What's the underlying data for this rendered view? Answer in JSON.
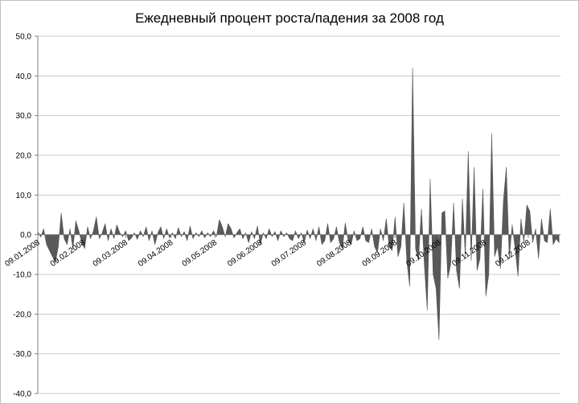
{
  "chart_data": {
    "type": "area",
    "title": "Ежедневный процент роста/падения за 2008 год",
    "xlabel": "",
    "ylabel": "",
    "ylim": [
      -40,
      50
    ],
    "yticks": [
      50,
      40,
      30,
      20,
      10,
      0,
      -10,
      -20,
      -30,
      -40
    ],
    "ytick_labels": [
      "50,0",
      "40,0",
      "30,0",
      "20,0",
      "10,0",
      "0,0",
      "-10,0",
      "-20,0",
      "-30,0",
      "-40,0"
    ],
    "grid": true,
    "legend": "none",
    "fill_color": "#595959",
    "x_date_range": [
      "2008-01-09",
      "2008-12-31"
    ],
    "x_ticks": [
      {
        "date": "2008-01-09",
        "label": "09.01.2008"
      },
      {
        "date": "2008-02-09",
        "label": "09.02.2008"
      },
      {
        "date": "2008-03-09",
        "label": "09.03.2008"
      },
      {
        "date": "2008-04-09",
        "label": "09.04.2008"
      },
      {
        "date": "2008-05-09",
        "label": "09.05.2008"
      },
      {
        "date": "2008-06-09",
        "label": "09.06.2008"
      },
      {
        "date": "2008-07-09",
        "label": "09.07.2008"
      },
      {
        "date": "2008-08-09",
        "label": "09.08.2008"
      },
      {
        "date": "2008-09-09",
        "label": "09.09.2008"
      },
      {
        "date": "2008-10-09",
        "label": "09.10.2008"
      },
      {
        "date": "2008-11-09",
        "label": "09.11.2008"
      },
      {
        "date": "2008-12-09",
        "label": "09.12.2008"
      }
    ],
    "series": [
      {
        "points": [
          [
            "2008-01-09",
            0.8
          ],
          [
            "2008-01-11",
            -0.6
          ],
          [
            "2008-01-13",
            1.5
          ],
          [
            "2008-01-15",
            -2.5
          ],
          [
            "2008-01-17",
            -4.0
          ],
          [
            "2008-01-19",
            -5.5
          ],
          [
            "2008-01-21",
            -7.0
          ],
          [
            "2008-01-23",
            -3.0
          ],
          [
            "2008-01-25",
            5.5
          ],
          [
            "2008-01-27",
            -1.0
          ],
          [
            "2008-01-29",
            -2.5
          ],
          [
            "2008-01-31",
            1.5
          ],
          [
            "2008-02-02",
            -3.5
          ],
          [
            "2008-02-04",
            3.5
          ],
          [
            "2008-02-06",
            1.0
          ],
          [
            "2008-02-08",
            -2.0
          ],
          [
            "2008-02-10",
            -3.5
          ],
          [
            "2008-02-12",
            2.0
          ],
          [
            "2008-02-14",
            -1.0
          ],
          [
            "2008-02-16",
            1.0
          ],
          [
            "2008-02-18",
            4.5
          ],
          [
            "2008-02-20",
            -1.0
          ],
          [
            "2008-02-22",
            0.5
          ],
          [
            "2008-02-24",
            2.8
          ],
          [
            "2008-02-26",
            -1.5
          ],
          [
            "2008-02-28",
            1.5
          ],
          [
            "2008-03-01",
            -1.0
          ],
          [
            "2008-03-03",
            2.5
          ],
          [
            "2008-03-05",
            0.5
          ],
          [
            "2008-03-07",
            -0.5
          ],
          [
            "2008-03-09",
            1.0
          ],
          [
            "2008-03-11",
            -1.5
          ],
          [
            "2008-03-13",
            -0.8
          ],
          [
            "2008-03-15",
            0.5
          ],
          [
            "2008-03-17",
            -1.2
          ],
          [
            "2008-03-19",
            1.0
          ],
          [
            "2008-03-21",
            -0.5
          ],
          [
            "2008-03-23",
            2.0
          ],
          [
            "2008-03-25",
            -1.5
          ],
          [
            "2008-03-27",
            1.0
          ],
          [
            "2008-03-29",
            -2.5
          ],
          [
            "2008-03-31",
            0.5
          ],
          [
            "2008-04-02",
            2.0
          ],
          [
            "2008-04-04",
            -1.0
          ],
          [
            "2008-04-06",
            1.5
          ],
          [
            "2008-04-08",
            -0.8
          ],
          [
            "2008-04-10",
            0.5
          ],
          [
            "2008-04-12",
            -1.0
          ],
          [
            "2008-04-14",
            1.8
          ],
          [
            "2008-04-16",
            -0.5
          ],
          [
            "2008-04-18",
            0.8
          ],
          [
            "2008-04-20",
            -1.5
          ],
          [
            "2008-04-22",
            2.2
          ],
          [
            "2008-04-24",
            -1.0
          ],
          [
            "2008-04-26",
            0.5
          ],
          [
            "2008-04-28",
            -0.5
          ],
          [
            "2008-04-30",
            1.0
          ],
          [
            "2008-05-02",
            -0.8
          ],
          [
            "2008-05-04",
            0.5
          ],
          [
            "2008-05-06",
            -0.5
          ],
          [
            "2008-05-08",
            1.0
          ],
          [
            "2008-05-10",
            -0.5
          ],
          [
            "2008-05-12",
            3.8
          ],
          [
            "2008-05-14",
            2.0
          ],
          [
            "2008-05-16",
            -0.5
          ],
          [
            "2008-05-18",
            2.8
          ],
          [
            "2008-05-20",
            1.5
          ],
          [
            "2008-05-22",
            -0.8
          ],
          [
            "2008-05-24",
            0.5
          ],
          [
            "2008-05-26",
            1.5
          ],
          [
            "2008-05-28",
            -1.0
          ],
          [
            "2008-05-30",
            0.5
          ],
          [
            "2008-06-01",
            -2.0
          ],
          [
            "2008-06-03",
            0.8
          ],
          [
            "2008-06-05",
            -1.0
          ],
          [
            "2008-06-07",
            2.2
          ],
          [
            "2008-06-09",
            -2.5
          ],
          [
            "2008-06-11",
            0.5
          ],
          [
            "2008-06-13",
            -1.0
          ],
          [
            "2008-06-15",
            1.5
          ],
          [
            "2008-06-17",
            -0.5
          ],
          [
            "2008-06-19",
            0.8
          ],
          [
            "2008-06-21",
            -1.5
          ],
          [
            "2008-06-23",
            1.0
          ],
          [
            "2008-06-25",
            -0.5
          ],
          [
            "2008-06-27",
            0.5
          ],
          [
            "2008-06-29",
            -1.0
          ],
          [
            "2008-07-01",
            -1.5
          ],
          [
            "2008-07-03",
            1.0
          ],
          [
            "2008-07-05",
            -1.0
          ],
          [
            "2008-07-07",
            0.5
          ],
          [
            "2008-07-09",
            -2.0
          ],
          [
            "2008-07-11",
            1.2
          ],
          [
            "2008-07-13",
            -1.0
          ],
          [
            "2008-07-15",
            1.5
          ],
          [
            "2008-07-17",
            -1.5
          ],
          [
            "2008-07-19",
            2.0
          ],
          [
            "2008-07-21",
            -2.5
          ],
          [
            "2008-07-23",
            -1.5
          ],
          [
            "2008-07-25",
            2.8
          ],
          [
            "2008-07-27",
            -2.0
          ],
          [
            "2008-07-29",
            -1.0
          ],
          [
            "2008-07-31",
            2.0
          ],
          [
            "2008-08-02",
            -2.0
          ],
          [
            "2008-08-04",
            -3.5
          ],
          [
            "2008-08-06",
            3.0
          ],
          [
            "2008-08-08",
            -1.5
          ],
          [
            "2008-08-10",
            -2.5
          ],
          [
            "2008-08-12",
            1.0
          ],
          [
            "2008-08-14",
            -1.5
          ],
          [
            "2008-08-16",
            -1.0
          ],
          [
            "2008-08-18",
            2.0
          ],
          [
            "2008-08-20",
            -1.5
          ],
          [
            "2008-08-22",
            -2.0
          ],
          [
            "2008-08-24",
            1.5
          ],
          [
            "2008-08-26",
            -3.0
          ],
          [
            "2008-08-28",
            -4.5
          ],
          [
            "2008-08-30",
            1.5
          ],
          [
            "2008-09-01",
            -1.5
          ],
          [
            "2008-09-03",
            4.0
          ],
          [
            "2008-09-05",
            -3.0
          ],
          [
            "2008-09-07",
            -4.0
          ],
          [
            "2008-09-09",
            4.5
          ],
          [
            "2008-09-11",
            -5.5
          ],
          [
            "2008-09-13",
            -3.0
          ],
          [
            "2008-09-15",
            8.0
          ],
          [
            "2008-09-17",
            -6.5
          ],
          [
            "2008-09-19",
            -13.0
          ],
          [
            "2008-09-21",
            42.0
          ],
          [
            "2008-09-23",
            -3.5
          ],
          [
            "2008-09-25",
            -6.5
          ],
          [
            "2008-09-27",
            6.5
          ],
          [
            "2008-09-29",
            -7.5
          ],
          [
            "2008-10-01",
            -19.0
          ],
          [
            "2008-10-03",
            14.0
          ],
          [
            "2008-10-05",
            -10.0
          ],
          [
            "2008-10-07",
            -13.5
          ],
          [
            "2008-10-09",
            -26.5
          ],
          [
            "2008-10-11",
            5.5
          ],
          [
            "2008-10-13",
            6.0
          ],
          [
            "2008-10-15",
            -11.0
          ],
          [
            "2008-10-17",
            -7.5
          ],
          [
            "2008-10-19",
            8.0
          ],
          [
            "2008-10-21",
            -9.0
          ],
          [
            "2008-10-23",
            -13.5
          ],
          [
            "2008-10-25",
            9.0
          ],
          [
            "2008-10-27",
            -5.5
          ],
          [
            "2008-10-29",
            21.0
          ],
          [
            "2008-10-31",
            -6.5
          ],
          [
            "2008-11-02",
            17.0
          ],
          [
            "2008-11-04",
            -9.0
          ],
          [
            "2008-11-06",
            -6.0
          ],
          [
            "2008-11-08",
            11.5
          ],
          [
            "2008-11-10",
            -15.5
          ],
          [
            "2008-11-12",
            -10.0
          ],
          [
            "2008-11-14",
            25.5
          ],
          [
            "2008-11-16",
            -5.5
          ],
          [
            "2008-11-18",
            -3.0
          ],
          [
            "2008-11-20",
            -8.5
          ],
          [
            "2008-11-22",
            8.5
          ],
          [
            "2008-11-24",
            17.0
          ],
          [
            "2008-11-26",
            -6.0
          ],
          [
            "2008-11-28",
            2.5
          ],
          [
            "2008-11-30",
            -3.5
          ],
          [
            "2008-12-02",
            -10.5
          ],
          [
            "2008-12-04",
            4.0
          ],
          [
            "2008-12-06",
            -2.0
          ],
          [
            "2008-12-08",
            7.5
          ],
          [
            "2008-12-10",
            6.0
          ],
          [
            "2008-12-12",
            -2.0
          ],
          [
            "2008-12-14",
            1.5
          ],
          [
            "2008-12-16",
            -6.0
          ],
          [
            "2008-12-18",
            4.0
          ],
          [
            "2008-12-20",
            -1.5
          ],
          [
            "2008-12-22",
            -2.0
          ],
          [
            "2008-12-24",
            6.5
          ],
          [
            "2008-12-26",
            -2.5
          ],
          [
            "2008-12-28",
            -1.0
          ],
          [
            "2008-12-30",
            -2.0
          ]
        ]
      }
    ]
  }
}
